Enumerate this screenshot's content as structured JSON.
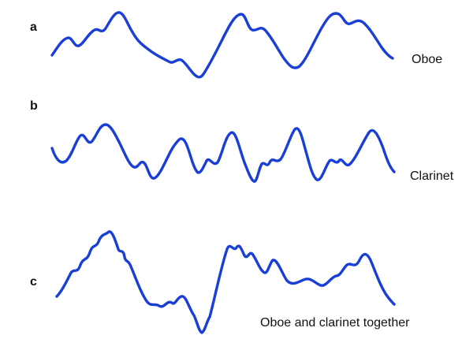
{
  "colors": {
    "waveform": "#1a3fd6",
    "text": "#111111",
    "background": "#ffffff"
  },
  "panels": [
    {
      "letter": "a",
      "label": "Oboe"
    },
    {
      "letter": "b",
      "label": "Clarinet"
    },
    {
      "letter": "c",
      "label": "Oboe and clarinet together"
    }
  ]
}
